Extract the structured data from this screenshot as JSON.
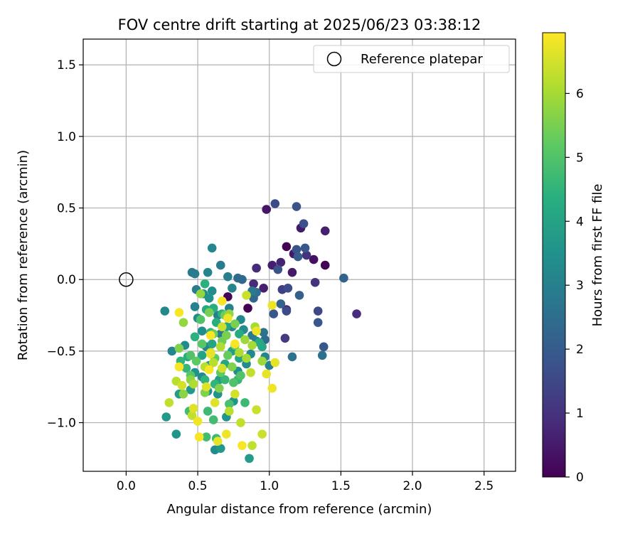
{
  "chart_data": {
    "type": "scatter",
    "title": "FOV centre drift starting at 2025/06/23 03:38:12",
    "xlabel": "Angular distance from reference (arcmin)",
    "ylabel": "Rotation from reference (arcmin)",
    "xlim": [
      -0.3,
      2.72
    ],
    "ylim": [
      -1.34,
      1.68
    ],
    "xticks": [
      "0.0",
      "0.5",
      "1.0",
      "1.5",
      "2.0",
      "2.5"
    ],
    "xtick_values": [
      0,
      0.5,
      1.0,
      1.5,
      2.0,
      2.5
    ],
    "yticks": [
      "−1.0",
      "−0.5",
      "0.0",
      "0.5",
      "1.0",
      "1.5"
    ],
    "ytick_values": [
      -1.0,
      -0.5,
      0.0,
      0.5,
      1.0,
      1.5
    ],
    "grid": true,
    "legend": {
      "placement": "top-right",
      "entries": [
        "Reference platepar"
      ]
    },
    "reference_point": {
      "x": 0.0,
      "y": 0.0
    },
    "colorbar": {
      "label": "Hours from first FF file",
      "range": [
        0,
        6.95
      ],
      "ticks": [
        "0",
        "1",
        "2",
        "3",
        "4",
        "5",
        "6"
      ],
      "tick_values": [
        0,
        1,
        2,
        3,
        4,
        5,
        6
      ],
      "colormap": "viridis"
    },
    "points": [
      {
        "x": 1.12,
        "y": 0.23,
        "h": 0.05
      },
      {
        "x": 1.39,
        "y": 0.1,
        "h": 0.05
      },
      {
        "x": 0.71,
        "y": -0.12,
        "h": 0.1
      },
      {
        "x": 0.85,
        "y": -0.2,
        "h": 0.05
      },
      {
        "x": 0.98,
        "y": 0.49,
        "h": 0.4
      },
      {
        "x": 1.31,
        "y": 0.14,
        "h": 0.3
      },
      {
        "x": 1.17,
        "y": 0.18,
        "h": 0.5
      },
      {
        "x": 1.22,
        "y": 0.36,
        "h": 0.5
      },
      {
        "x": 1.39,
        "y": 0.34,
        "h": 0.6
      },
      {
        "x": 1.02,
        "y": 0.1,
        "h": 0.6
      },
      {
        "x": 1.08,
        "y": 0.12,
        "h": 0.7
      },
      {
        "x": 1.16,
        "y": 0.05,
        "h": 0.5
      },
      {
        "x": 0.91,
        "y": 0.08,
        "h": 0.8
      },
      {
        "x": 0.89,
        "y": -0.03,
        "h": 0.8
      },
      {
        "x": 0.96,
        "y": -0.06,
        "h": 0.6
      },
      {
        "x": 1.12,
        "y": -0.21,
        "h": 0.7
      },
      {
        "x": 1.61,
        "y": -0.24,
        "h": 0.9
      },
      {
        "x": 1.32,
        "y": -0.02,
        "h": 1.0
      },
      {
        "x": 1.11,
        "y": -0.41,
        "h": 1.2
      },
      {
        "x": 1.09,
        "y": -0.07,
        "h": 1.3
      },
      {
        "x": 1.26,
        "y": 0.17,
        "h": 1.0
      },
      {
        "x": 1.04,
        "y": 0.53,
        "h": 1.6
      },
      {
        "x": 1.19,
        "y": 0.51,
        "h": 1.8
      },
      {
        "x": 1.24,
        "y": 0.39,
        "h": 1.7
      },
      {
        "x": 1.19,
        "y": 0.21,
        "h": 1.8
      },
      {
        "x": 1.25,
        "y": 0.22,
        "h": 1.9
      },
      {
        "x": 1.2,
        "y": 0.16,
        "h": 2.0
      },
      {
        "x": 1.06,
        "y": 0.07,
        "h": 1.8
      },
      {
        "x": 1.13,
        "y": -0.06,
        "h": 1.6
      },
      {
        "x": 1.03,
        "y": -0.24,
        "h": 1.9
      },
      {
        "x": 1.12,
        "y": -0.22,
        "h": 1.6
      },
      {
        "x": 1.34,
        "y": -0.22,
        "h": 1.5
      },
      {
        "x": 1.34,
        "y": -0.3,
        "h": 1.9
      },
      {
        "x": 1.38,
        "y": -0.47,
        "h": 1.9
      },
      {
        "x": 1.52,
        "y": 0.01,
        "h": 2.2
      },
      {
        "x": 1.21,
        "y": -0.11,
        "h": 2.1
      },
      {
        "x": 1.08,
        "y": -0.17,
        "h": 2.2
      },
      {
        "x": 0.89,
        "y": -0.13,
        "h": 2.3
      },
      {
        "x": 0.81,
        "y": 0.0,
        "h": 2.4
      },
      {
        "x": 0.78,
        "y": 0.01,
        "h": 2.4
      },
      {
        "x": 0.91,
        "y": -0.09,
        "h": 2.5
      },
      {
        "x": 1.37,
        "y": -0.53,
        "h": 2.6
      },
      {
        "x": 1.16,
        "y": -0.54,
        "h": 2.6
      },
      {
        "x": 0.97,
        "y": -0.42,
        "h": 2.4
      },
      {
        "x": 0.96,
        "y": -0.37,
        "h": 2.6
      },
      {
        "x": 0.88,
        "y": -0.08,
        "h": 2.8
      },
      {
        "x": 0.46,
        "y": 0.05,
        "h": 2.8
      },
      {
        "x": 0.48,
        "y": 0.04,
        "h": 2.9
      },
      {
        "x": 0.66,
        "y": 0.1,
        "h": 2.9
      },
      {
        "x": 0.71,
        "y": 0.02,
        "h": 3.0
      },
      {
        "x": 0.6,
        "y": 0.22,
        "h": 3.2
      },
      {
        "x": 0.49,
        "y": -0.07,
        "h": 2.9
      },
      {
        "x": 0.57,
        "y": 0.05,
        "h": 3.1
      },
      {
        "x": 0.74,
        "y": -0.06,
        "h": 3.1
      },
      {
        "x": 0.27,
        "y": -0.22,
        "h": 3.2
      },
      {
        "x": 0.48,
        "y": -0.19,
        "h": 3.0
      },
      {
        "x": 0.54,
        "y": -0.1,
        "h": 3.3
      },
      {
        "x": 0.6,
        "y": -0.08,
        "h": 3.4
      },
      {
        "x": 0.58,
        "y": -0.13,
        "h": 3.5
      },
      {
        "x": 0.72,
        "y": -0.2,
        "h": 3.0
      },
      {
        "x": 0.64,
        "y": -0.25,
        "h": 3.0
      },
      {
        "x": 0.8,
        "y": -0.28,
        "h": 3.2
      },
      {
        "x": 0.5,
        "y": -0.27,
        "h": 3.3
      },
      {
        "x": 0.53,
        "y": -0.36,
        "h": 3.4
      },
      {
        "x": 0.56,
        "y": -0.47,
        "h": 3.1
      },
      {
        "x": 0.66,
        "y": -0.38,
        "h": 2.9
      },
      {
        "x": 0.74,
        "y": -0.33,
        "h": 3.2
      },
      {
        "x": 0.82,
        "y": -0.35,
        "h": 3.3
      },
      {
        "x": 0.88,
        "y": -0.39,
        "h": 2.8
      },
      {
        "x": 0.91,
        "y": -0.43,
        "h": 3.0
      },
      {
        "x": 0.87,
        "y": -0.52,
        "h": 3.2
      },
      {
        "x": 0.97,
        "y": -0.54,
        "h": 3.1
      },
      {
        "x": 1.0,
        "y": -0.6,
        "h": 3.0
      },
      {
        "x": 0.84,
        "y": -0.59,
        "h": 3.3
      },
      {
        "x": 0.78,
        "y": -0.64,
        "h": 3.4
      },
      {
        "x": 0.32,
        "y": -0.5,
        "h": 3.2
      },
      {
        "x": 0.41,
        "y": -0.46,
        "h": 3.3
      },
      {
        "x": 0.48,
        "y": -0.65,
        "h": 3.5
      },
      {
        "x": 0.53,
        "y": -0.68,
        "h": 3.3
      },
      {
        "x": 0.57,
        "y": -0.78,
        "h": 3.4
      },
      {
        "x": 0.64,
        "y": -0.8,
        "h": 3.5
      },
      {
        "x": 0.75,
        "y": -0.85,
        "h": 3.6
      },
      {
        "x": 0.7,
        "y": -0.96,
        "h": 3.6
      },
      {
        "x": 0.62,
        "y": -1.19,
        "h": 3.3
      },
      {
        "x": 0.35,
        "y": -1.08,
        "h": 3.6
      },
      {
        "x": 0.28,
        "y": -0.96,
        "h": 3.7
      },
      {
        "x": 0.66,
        "y": -1.18,
        "h": 3.7
      },
      {
        "x": 0.86,
        "y": -1.25,
        "h": 3.8
      },
      {
        "x": 0.65,
        "y": -0.7,
        "h": 3.8
      },
      {
        "x": 0.45,
        "y": -0.77,
        "h": 3.7
      },
      {
        "x": 0.37,
        "y": -0.8,
        "h": 3.8
      },
      {
        "x": 0.58,
        "y": -0.6,
        "h": 3.9
      },
      {
        "x": 0.6,
        "y": -0.45,
        "h": 4.0
      },
      {
        "x": 0.53,
        "y": -0.53,
        "h": 4.0
      },
      {
        "x": 0.69,
        "y": -0.59,
        "h": 4.1
      },
      {
        "x": 0.74,
        "y": -0.5,
        "h": 3.9
      },
      {
        "x": 0.79,
        "y": -0.55,
        "h": 4.0
      },
      {
        "x": 0.95,
        "y": -0.47,
        "h": 4.1
      },
      {
        "x": 0.93,
        "y": -0.44,
        "h": 4.2
      },
      {
        "x": 0.79,
        "y": -0.38,
        "h": 4.2
      },
      {
        "x": 0.7,
        "y": -0.33,
        "h": 4.1
      },
      {
        "x": 0.63,
        "y": -0.3,
        "h": 4.3
      },
      {
        "x": 0.56,
        "y": -0.21,
        "h": 4.2
      },
      {
        "x": 0.55,
        "y": -0.03,
        "h": 4.4
      },
      {
        "x": 0.61,
        "y": -0.2,
        "h": 4.3
      },
      {
        "x": 0.67,
        "y": -0.24,
        "h": 4.4
      },
      {
        "x": 0.59,
        "y": -0.37,
        "h": 4.5
      },
      {
        "x": 0.48,
        "y": -0.4,
        "h": 4.4
      },
      {
        "x": 0.43,
        "y": -0.54,
        "h": 4.3
      },
      {
        "x": 0.38,
        "y": -0.57,
        "h": 4.5
      },
      {
        "x": 0.42,
        "y": -0.62,
        "h": 4.6
      },
      {
        "x": 0.55,
        "y": -0.7,
        "h": 4.5
      },
      {
        "x": 0.62,
        "y": -0.73,
        "h": 4.5
      },
      {
        "x": 0.69,
        "y": -0.7,
        "h": 4.6
      },
      {
        "x": 0.78,
        "y": -0.7,
        "h": 4.6
      },
      {
        "x": 0.83,
        "y": -0.86,
        "h": 4.7
      },
      {
        "x": 0.57,
        "y": -0.92,
        "h": 4.7
      },
      {
        "x": 0.61,
        "y": -0.98,
        "h": 4.8
      },
      {
        "x": 0.44,
        "y": -0.92,
        "h": 4.8
      },
      {
        "x": 0.56,
        "y": -1.1,
        "h": 4.8
      },
      {
        "x": 0.63,
        "y": -1.11,
        "h": 4.7
      },
      {
        "x": 0.72,
        "y": -0.87,
        "h": 4.9
      },
      {
        "x": 0.75,
        "y": -0.72,
        "h": 5.0
      },
      {
        "x": 0.8,
        "y": -0.67,
        "h": 5.0
      },
      {
        "x": 0.52,
        "y": -0.28,
        "h": 5.0
      },
      {
        "x": 0.53,
        "y": -0.45,
        "h": 5.1
      },
      {
        "x": 0.45,
        "y": -0.53,
        "h": 5.0
      },
      {
        "x": 0.45,
        "y": -0.67,
        "h": 5.1
      },
      {
        "x": 0.49,
        "y": -0.57,
        "h": 5.2
      },
      {
        "x": 0.62,
        "y": -0.55,
        "h": 5.2
      },
      {
        "x": 0.66,
        "y": -0.65,
        "h": 5.2
      },
      {
        "x": 0.71,
        "y": -0.53,
        "h": 5.3
      },
      {
        "x": 0.76,
        "y": -0.46,
        "h": 5.3
      },
      {
        "x": 0.67,
        "y": -0.43,
        "h": 5.4
      },
      {
        "x": 0.61,
        "y": -0.38,
        "h": 5.4
      },
      {
        "x": 0.58,
        "y": -0.23,
        "h": 5.5
      },
      {
        "x": 0.69,
        "y": -0.25,
        "h": 5.4
      },
      {
        "x": 0.76,
        "y": -0.31,
        "h": 5.5
      },
      {
        "x": 0.7,
        "y": -0.39,
        "h": 5.5
      },
      {
        "x": 0.74,
        "y": -0.61,
        "h": 5.6
      },
      {
        "x": 0.65,
        "y": -0.76,
        "h": 5.6
      },
      {
        "x": 0.55,
        "y": -0.79,
        "h": 5.6
      },
      {
        "x": 0.45,
        "y": -0.7,
        "h": 5.7
      },
      {
        "x": 0.4,
        "y": -0.8,
        "h": 5.7
      },
      {
        "x": 0.37,
        "y": -0.48,
        "h": 5.6
      },
      {
        "x": 0.4,
        "y": -0.3,
        "h": 5.8
      },
      {
        "x": 0.52,
        "y": -0.1,
        "h": 5.8
      },
      {
        "x": 0.72,
        "y": -0.24,
        "h": 5.8
      },
      {
        "x": 0.83,
        "y": -0.42,
        "h": 5.9
      },
      {
        "x": 0.9,
        "y": -0.33,
        "h": 6.0
      },
      {
        "x": 0.88,
        "y": -0.46,
        "h": 6.0
      },
      {
        "x": 0.95,
        "y": -0.57,
        "h": 5.9
      },
      {
        "x": 0.84,
        "y": -0.55,
        "h": 6.0
      },
      {
        "x": 0.79,
        "y": -0.51,
        "h": 6.1
      },
      {
        "x": 0.66,
        "y": -0.47,
        "h": 6.1
      },
      {
        "x": 0.61,
        "y": -0.58,
        "h": 6.2
      },
      {
        "x": 0.55,
        "y": -0.61,
        "h": 6.2
      },
      {
        "x": 0.47,
        "y": -0.73,
        "h": 6.1
      },
      {
        "x": 0.35,
        "y": -0.71,
        "h": 6.2
      },
      {
        "x": 0.3,
        "y": -0.86,
        "h": 6.3
      },
      {
        "x": 0.46,
        "y": -0.95,
        "h": 6.3
      },
      {
        "x": 0.72,
        "y": -0.92,
        "h": 6.2
      },
      {
        "x": 0.8,
        "y": -1.0,
        "h": 6.3
      },
      {
        "x": 0.88,
        "y": -1.16,
        "h": 6.3
      },
      {
        "x": 0.95,
        "y": -1.08,
        "h": 6.4
      },
      {
        "x": 0.91,
        "y": -0.91,
        "h": 6.4
      },
      {
        "x": 0.87,
        "y": -0.65,
        "h": 6.3
      },
      {
        "x": 0.84,
        "y": -0.11,
        "h": 6.4
      },
      {
        "x": 0.67,
        "y": -0.33,
        "h": 6.4
      },
      {
        "x": 0.59,
        "y": -0.51,
        "h": 6.5
      },
      {
        "x": 0.67,
        "y": -0.62,
        "h": 6.5
      },
      {
        "x": 0.76,
        "y": -0.8,
        "h": 6.5
      },
      {
        "x": 0.47,
        "y": -0.9,
        "h": 6.6
      },
      {
        "x": 0.62,
        "y": -0.86,
        "h": 6.6
      },
      {
        "x": 0.98,
        "y": -0.66,
        "h": 6.7
      },
      {
        "x": 1.02,
        "y": -0.76,
        "h": 6.8
      },
      {
        "x": 1.04,
        "y": -0.58,
        "h": 6.7
      },
      {
        "x": 1.02,
        "y": -0.18,
        "h": 6.8
      },
      {
        "x": 0.91,
        "y": -0.36,
        "h": 6.8
      },
      {
        "x": 0.76,
        "y": -0.45,
        "h": 6.9
      },
      {
        "x": 0.71,
        "y": -0.27,
        "h": 6.8
      },
      {
        "x": 0.67,
        "y": -0.15,
        "h": 6.9
      },
      {
        "x": 0.59,
        "y": -0.39,
        "h": 6.9
      },
      {
        "x": 0.58,
        "y": -0.63,
        "h": 6.9
      },
      {
        "x": 0.59,
        "y": -0.52,
        "h": 6.7
      },
      {
        "x": 0.37,
        "y": -0.23,
        "h": 6.9
      },
      {
        "x": 0.37,
        "y": -0.61,
        "h": 6.9
      },
      {
        "x": 0.5,
        "y": -0.99,
        "h": 6.8
      },
      {
        "x": 0.51,
        "y": -1.1,
        "h": 6.9
      },
      {
        "x": 0.64,
        "y": -1.13,
        "h": 6.7
      },
      {
        "x": 0.7,
        "y": -1.08,
        "h": 6.8
      },
      {
        "x": 0.81,
        "y": -1.16,
        "h": 6.9
      },
      {
        "x": 0.39,
        "y": -0.74,
        "h": 6.5
      },
      {
        "x": 0.56,
        "y": -0.75,
        "h": 6.6
      }
    ]
  }
}
